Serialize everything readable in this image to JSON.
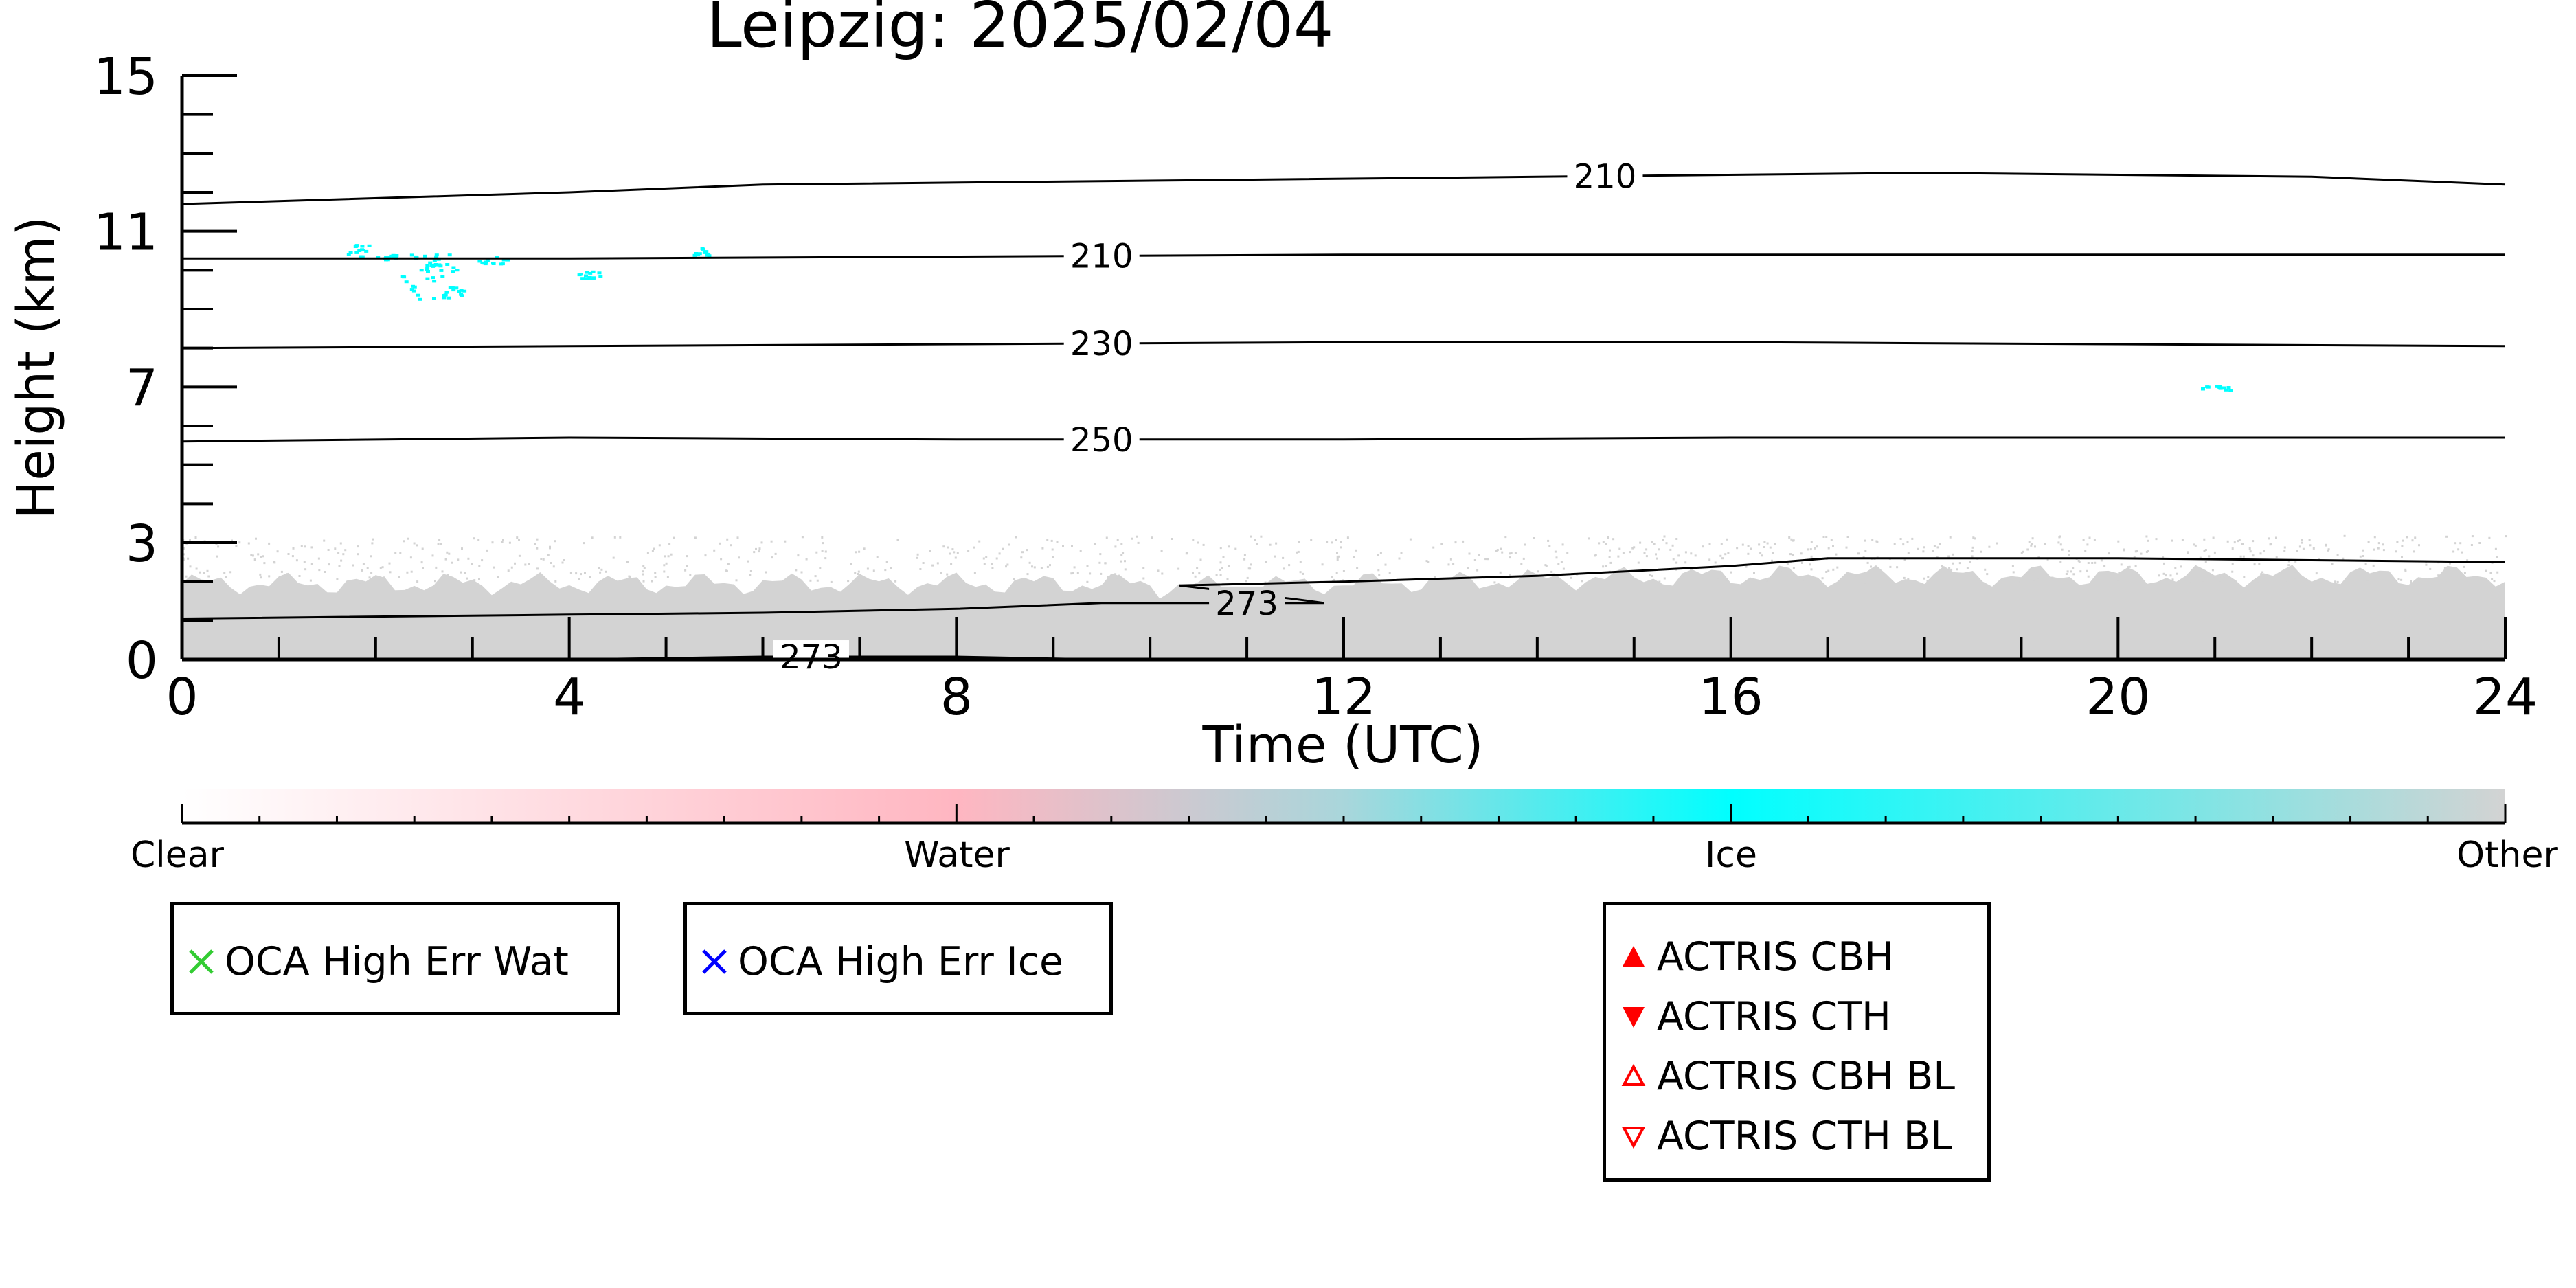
{
  "chart_data": {
    "type": "heatmap",
    "title": "Leipzig: 2025/02/04",
    "xlabel": "Time (UTC)",
    "ylabel": "Height (km)",
    "xlim": [
      0,
      24
    ],
    "ylim": [
      0,
      15
    ],
    "x_ticks": [
      0,
      4,
      8,
      12,
      16,
      20,
      24
    ],
    "y_ticks": [
      0,
      3,
      7,
      11,
      15
    ],
    "categories": [
      "Clear",
      "Water",
      "Ice",
      "Other"
    ],
    "category_colors": {
      "Clear": "#ffffff",
      "Water": "#ffb6c1",
      "Ice": "#00ffff",
      "Other": "#d3d3d3"
    },
    "isotherms": [
      {
        "label": "210",
        "label_x": 14.7,
        "points": [
          [
            0,
            11.7
          ],
          [
            4,
            12.0
          ],
          [
            6,
            12.2
          ],
          [
            10,
            12.3
          ],
          [
            14,
            12.4
          ],
          [
            18,
            12.5
          ],
          [
            22,
            12.4
          ],
          [
            24,
            12.2
          ]
        ]
      },
      {
        "label": "210",
        "label_x": 9.5,
        "points": [
          [
            0,
            10.3
          ],
          [
            4,
            10.3
          ],
          [
            8,
            10.35
          ],
          [
            12,
            10.4
          ],
          [
            16,
            10.4
          ],
          [
            20,
            10.4
          ],
          [
            24,
            10.4
          ]
        ]
      },
      {
        "label": "230",
        "label_x": 9.5,
        "points": [
          [
            0,
            8.0
          ],
          [
            4,
            8.05
          ],
          [
            8,
            8.1
          ],
          [
            12,
            8.15
          ],
          [
            16,
            8.15
          ],
          [
            20,
            8.1
          ],
          [
            24,
            8.05
          ]
        ]
      },
      {
        "label": "250",
        "label_x": 9.5,
        "points": [
          [
            0,
            5.6
          ],
          [
            4,
            5.7
          ],
          [
            8,
            5.65
          ],
          [
            12,
            5.65
          ],
          [
            16,
            5.7
          ],
          [
            20,
            5.7
          ],
          [
            24,
            5.7
          ]
        ]
      },
      {
        "label": "273",
        "label_x": 11.0,
        "points": [
          [
            0,
            1.05
          ],
          [
            4,
            1.15
          ],
          [
            6,
            1.2
          ],
          [
            8,
            1.3
          ],
          [
            9.5,
            1.45
          ],
          [
            11,
            1.45
          ],
          [
            11.8,
            1.45
          ],
          [
            11.5,
            1.55
          ],
          [
            10.3,
            1.9
          ],
          [
            12,
            2.0
          ],
          [
            14,
            2.15
          ],
          [
            16,
            2.4
          ],
          [
            17,
            2.6
          ],
          [
            20,
            2.6
          ],
          [
            22,
            2.55
          ],
          [
            24,
            2.5
          ]
        ]
      },
      {
        "label": "273",
        "label_x": 6.5,
        "points": [
          [
            4,
            0.0
          ],
          [
            6,
            0.07
          ],
          [
            8,
            0.07
          ],
          [
            9.5,
            0.0
          ]
        ]
      }
    ],
    "annotations": [
      "Ice cloud patches 9.9-10.6 km, 1.8-5.4 UTC",
      "Small ice patch ~7.0 km at 21 UTC",
      "Other class below ~2.5 km all day"
    ],
    "grid": false
  },
  "colorbar": {
    "labels": [
      "Clear",
      "Water",
      "Ice",
      "Other"
    ]
  },
  "legends": {
    "oca_water": {
      "label": "OCA High Err Wat",
      "marker": "x",
      "color": "#33cc33"
    },
    "oca_ice": {
      "label": "OCA High Err Ice",
      "marker": "x",
      "color": "#0000ff"
    },
    "actris": [
      {
        "label": "ACTRIS CBH",
        "marker": "triangle-up-filled",
        "color": "#ff0000"
      },
      {
        "label": "ACTRIS CTH",
        "marker": "triangle-down-filled",
        "color": "#ff0000"
      },
      {
        "label": "ACTRIS CBH BL",
        "marker": "triangle-up-open",
        "color": "#ff0000"
      },
      {
        "label": "ACTRIS CTH BL",
        "marker": "triangle-down-open",
        "color": "#ff0000"
      }
    ]
  }
}
